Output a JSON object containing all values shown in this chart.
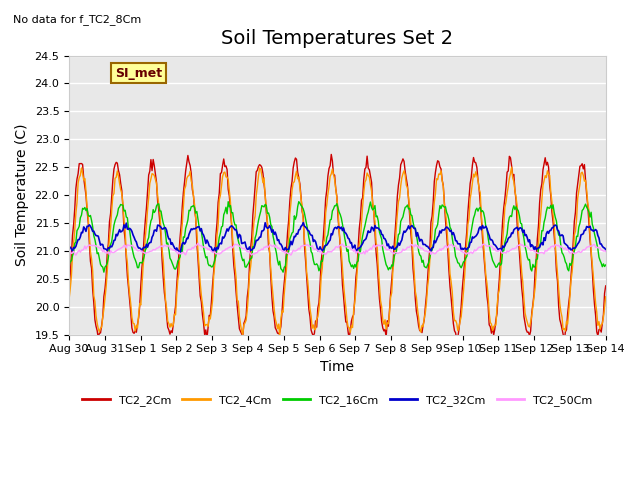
{
  "title": "Soil Temperatures Set 2",
  "subtitle": "No data for f_TC2_8Cm",
  "xlabel": "Time",
  "ylabel": "Soil Temperature (C)",
  "ylim": [
    19.5,
    24.5
  ],
  "yticks": [
    19.5,
    20.0,
    20.5,
    21.0,
    21.5,
    22.0,
    22.5,
    23.0,
    23.5,
    24.0,
    24.5
  ],
  "xtick_labels": [
    "Aug 30",
    "Aug 31",
    "Sep 1",
    "Sep 2",
    "Sep 3",
    "Sep 4",
    "Sep 5",
    "Sep 6",
    "Sep 7",
    "Sep 8",
    "Sep 9",
    "Sep 10",
    "Sep 11",
    "Sep 12",
    "Sep 13",
    "Sep 14"
  ],
  "xtick_pos": [
    0,
    1,
    2,
    3,
    4,
    5,
    6,
    7,
    8,
    9,
    10,
    11,
    12,
    13,
    14,
    15
  ],
  "series_colors": {
    "TC2_2Cm": "#cc0000",
    "TC2_4Cm": "#ff9900",
    "TC2_16Cm": "#00cc00",
    "TC2_32Cm": "#0000cc",
    "TC2_50Cm": "#ff99ff"
  },
  "legend_label": "SI_met",
  "legend_box_color": "#ffff99",
  "legend_box_edge": "#996600",
  "plot_bg_color": "#e8e8e8",
  "grid_color": "#ffffff",
  "title_fontsize": 14,
  "axis_label_fontsize": 10,
  "tick_fontsize": 8,
  "n_points": 480
}
